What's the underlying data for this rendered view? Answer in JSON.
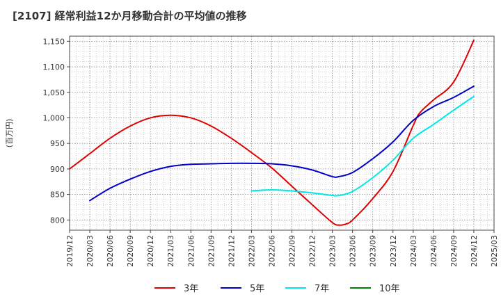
{
  "chart_data": {
    "type": "line",
    "title": "[2107]  経常利益12か月移動合計の平均値の推移",
    "ylabel": "(百万円)",
    "xlabel": "",
    "ylim": [
      780,
      1160
    ],
    "yticks": [
      800,
      850,
      900,
      950,
      1000,
      1050,
      1100,
      1150
    ],
    "ytick_labels": [
      "800",
      "850",
      "900",
      "950",
      "1,000",
      "1,050",
      "1,100",
      "1,150"
    ],
    "x_ticks": [
      "2019/12",
      "2020/03",
      "2020/06",
      "2020/09",
      "2020/12",
      "2021/03",
      "2021/06",
      "2021/09",
      "2021/12",
      "2022/03",
      "2022/06",
      "2022/09",
      "2022/12",
      "2023/03",
      "2023/06",
      "2023/09",
      "2023/12",
      "2024/03",
      "2024/06",
      "2024/09",
      "2024/12",
      "2025/03"
    ],
    "grid": true,
    "legend_position": "bottom",
    "series": [
      {
        "name": "3年",
        "color": "#e00000",
        "x": [
          "2019/12",
          "2020/03",
          "2020/06",
          "2020/09",
          "2020/12",
          "2021/03",
          "2021/06",
          "2021/09",
          "2021/12",
          "2022/03",
          "2022/06",
          "2022/09",
          "2022/12",
          "2023/03",
          "2023/04",
          "2023/05",
          "2023/06",
          "2023/09",
          "2023/12",
          "2024/03",
          "2024/04",
          "2024/06",
          "2024/09",
          "2024/12"
        ],
        "values": [
          900,
          930,
          960,
          984,
          1000,
          1005,
          1000,
          984,
          960,
          932,
          902,
          866,
          830,
          795,
          790,
          792,
          800,
          842,
          895,
          985,
          1010,
          1035,
          1070,
          1152
        ]
      },
      {
        "name": "5年",
        "color": "#0000c8",
        "x": [
          "2020/03",
          "2020/06",
          "2020/09",
          "2020/12",
          "2021/03",
          "2021/06",
          "2021/09",
          "2021/12",
          "2022/03",
          "2022/06",
          "2022/09",
          "2022/12",
          "2023/03",
          "2023/04",
          "2023/06",
          "2023/09",
          "2023/12",
          "2024/03",
          "2024/06",
          "2024/09",
          "2024/12"
        ],
        "values": [
          838,
          862,
          880,
          895,
          905,
          909,
          910,
          911,
          911,
          910,
          906,
          898,
          885,
          885,
          893,
          920,
          953,
          995,
          1022,
          1040,
          1062
        ]
      },
      {
        "name": "7年",
        "color": "#00e8e8",
        "x": [
          "2022/03",
          "2022/06",
          "2022/09",
          "2022/12",
          "2023/03",
          "2023/04",
          "2023/06",
          "2023/09",
          "2023/12",
          "2024/03",
          "2024/06",
          "2024/09",
          "2024/12"
        ],
        "values": [
          857,
          859,
          857,
          853,
          848,
          848,
          856,
          883,
          917,
          960,
          987,
          1015,
          1042
        ]
      },
      {
        "name": "10年",
        "color": "#008000",
        "x": [],
        "values": []
      }
    ]
  }
}
